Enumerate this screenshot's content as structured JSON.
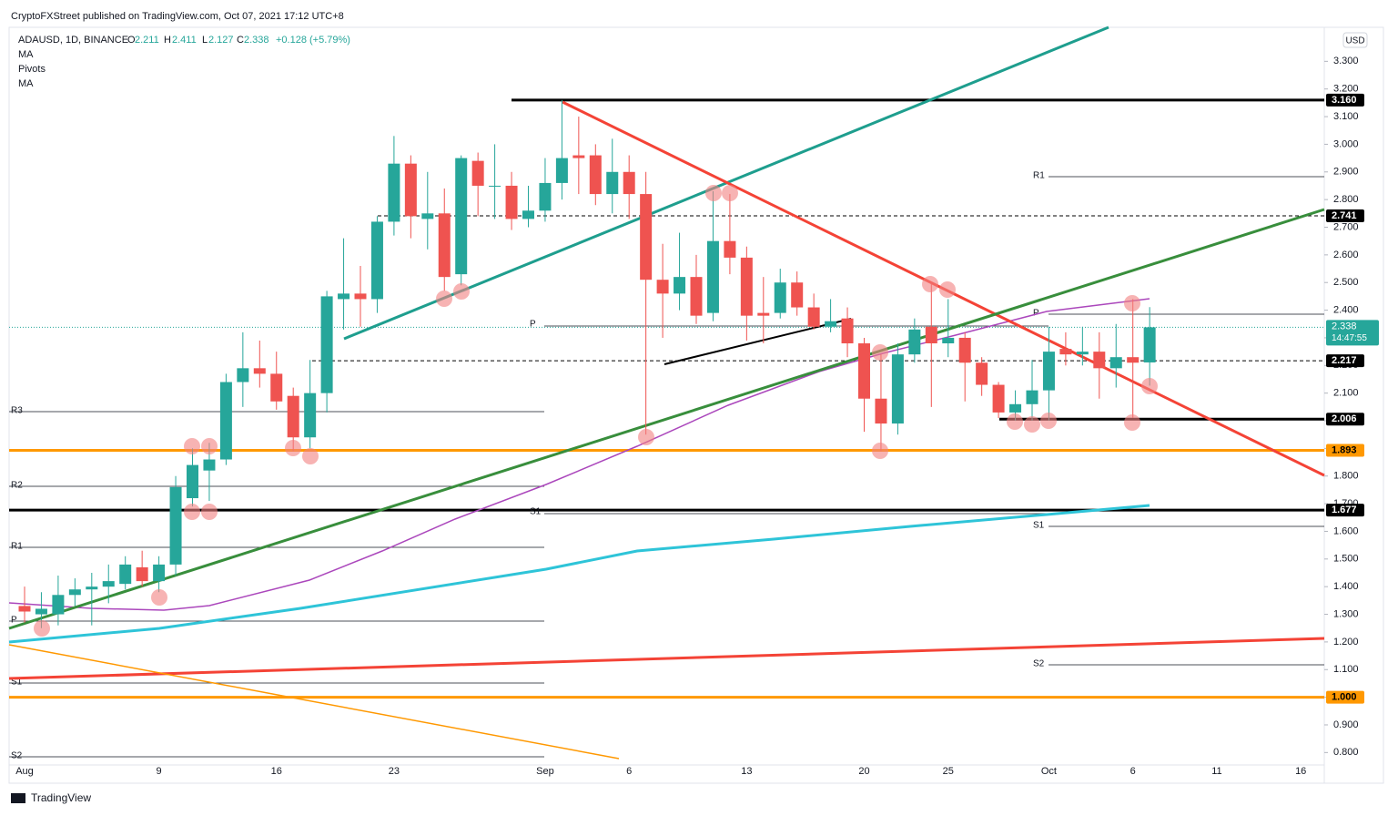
{
  "header": {
    "published": "CryptoFXStreet published on TradingView.com, Oct 07, 2021 17:12 UTC+8",
    "symbol": "ADAUSD, 1D, BINANCE",
    "o_label": "O",
    "o": "2.211",
    "h_label": "H",
    "h": "2.411",
    "l_label": "L",
    "l": "2.127",
    "c_label": "C",
    "c": "2.338",
    "change": "+0.128 (+5.79%)",
    "indicators": [
      "MA",
      "Pivots",
      "MA"
    ]
  },
  "footer": "TradingView",
  "chart_data": {
    "type": "candlestick",
    "currency": "USD",
    "categories": [
      "Aug",
      null,
      null,
      null,
      null,
      null,
      null,
      null,
      "9",
      null,
      null,
      null,
      null,
      null,
      null,
      "16",
      null,
      null,
      null,
      null,
      null,
      null,
      "23",
      null,
      null,
      null,
      null,
      null,
      null,
      null,
      null,
      "Sep",
      null,
      null,
      null,
      null,
      "6",
      null,
      null,
      null,
      null,
      null,
      null,
      "13",
      null,
      null,
      null,
      null,
      null,
      null,
      "20",
      null,
      null,
      null,
      null,
      "25",
      null,
      null,
      null,
      null,
      null,
      "Oct",
      null,
      null,
      null,
      null,
      "6",
      null
    ],
    "future_labels": [
      "11",
      "16"
    ],
    "up_color": "#26a69a",
    "down_color": "#ef5350",
    "open": [
      1.33,
      1.3,
      1.3,
      1.37,
      1.39,
      1.4,
      1.41,
      1.47,
      1.42,
      1.48,
      1.72,
      1.82,
      1.86,
      2.14,
      2.19,
      2.17,
      2.09,
      1.94,
      2.1,
      2.44,
      2.46,
      2.44,
      2.72,
      2.93,
      2.73,
      2.75,
      2.53,
      2.94,
      2.85,
      2.85,
      2.73,
      2.76,
      2.86,
      2.96,
      2.96,
      2.82,
      2.9,
      2.82,
      2.51,
      2.46,
      2.52,
      2.39,
      2.65,
      2.59,
      2.39,
      2.39,
      2.5,
      2.41,
      2.34,
      2.37,
      2.28,
      2.08,
      1.99,
      2.24,
      2.34,
      2.28,
      2.3,
      2.21,
      2.13,
      2.03,
      2.06,
      2.11,
      2.26,
      2.24,
      2.25,
      2.19,
      2.23,
      2.211
    ],
    "high": [
      1.4,
      1.38,
      1.44,
      1.43,
      1.45,
      1.48,
      1.51,
      1.53,
      1.51,
      1.8,
      1.9,
      1.92,
      2.17,
      2.32,
      2.29,
      2.25,
      2.12,
      2.22,
      2.47,
      2.66,
      2.56,
      2.74,
      3.03,
      2.96,
      2.9,
      2.84,
      2.96,
      2.97,
      3.0,
      2.9,
      2.85,
      2.95,
      3.16,
      3.1,
      3.0,
      3.02,
      2.96,
      2.9,
      2.64,
      2.68,
      2.6,
      2.83,
      2.82,
      2.63,
      2.52,
      2.55,
      2.54,
      2.46,
      2.44,
      2.41,
      2.3,
      2.24,
      2.28,
      2.37,
      2.5,
      2.44,
      2.32,
      2.23,
      2.14,
      2.11,
      2.22,
      2.34,
      2.32,
      2.34,
      2.32,
      2.35,
      2.44,
      2.411
    ],
    "low": [
      1.27,
      1.25,
      1.26,
      1.33,
      1.26,
      1.34,
      1.39,
      1.4,
      1.38,
      1.44,
      1.69,
      1.71,
      1.84,
      2.05,
      2.12,
      2.04,
      1.89,
      1.9,
      2.03,
      2.33,
      2.34,
      2.39,
      2.67,
      2.66,
      2.62,
      2.47,
      2.49,
      2.74,
      2.73,
      2.69,
      2.7,
      2.72,
      2.8,
      2.82,
      2.78,
      2.75,
      2.73,
      1.95,
      2.3,
      2.4,
      2.35,
      2.36,
      2.53,
      2.29,
      2.28,
      2.37,
      2.38,
      2.33,
      2.32,
      2.23,
      1.96,
      1.89,
      1.95,
      2.21,
      2.05,
      2.23,
      2.07,
      2.09,
      2.01,
      2.0,
      2.0,
      2.0,
      2.2,
      2.2,
      2.08,
      2.12,
      2.01,
      2.127
    ],
    "close": [
      1.31,
      1.32,
      1.37,
      1.39,
      1.4,
      1.42,
      1.48,
      1.42,
      1.48,
      1.76,
      1.84,
      1.86,
      2.14,
      2.19,
      2.17,
      2.07,
      1.94,
      2.1,
      2.45,
      2.46,
      2.44,
      2.72,
      2.93,
      2.74,
      2.75,
      2.52,
      2.95,
      2.85,
      2.85,
      2.73,
      2.76,
      2.86,
      2.95,
      2.95,
      2.82,
      2.9,
      2.82,
      2.51,
      2.46,
      2.52,
      2.38,
      2.65,
      2.59,
      2.38,
      2.38,
      2.5,
      2.41,
      2.34,
      2.36,
      2.28,
      2.08,
      1.99,
      2.24,
      2.33,
      2.28,
      2.3,
      2.21,
      2.13,
      2.03,
      2.06,
      2.11,
      2.25,
      2.24,
      2.25,
      2.19,
      2.23,
      2.21,
      2.338
    ],
    "ylim": [
      0.755,
      3.423
    ],
    "yticks": [
      {
        "value": 0.8,
        "label": "0.800"
      },
      {
        "value": 0.9,
        "label": "0.900"
      },
      {
        "value": 1.0,
        "label": "1.000"
      },
      {
        "value": 1.1,
        "label": "1.100"
      },
      {
        "value": 1.2,
        "label": "1.200"
      },
      {
        "value": 1.3,
        "label": "1.300"
      },
      {
        "value": 1.4,
        "label": "1.400"
      },
      {
        "value": 1.5,
        "label": "1.500"
      },
      {
        "value": 1.6,
        "label": "1.600"
      },
      {
        "value": 1.7,
        "label": "1.700"
      },
      {
        "value": 1.8,
        "label": "1.800"
      },
      {
        "value": 1.9,
        "label": "1.900"
      },
      {
        "value": 2.0,
        "label": "2.000"
      },
      {
        "value": 2.1,
        "label": "2.100"
      },
      {
        "value": 2.2,
        "label": "2.200"
      },
      {
        "value": 2.3,
        "label": "2.300"
      },
      {
        "value": 2.4,
        "label": "2.400"
      },
      {
        "value": 2.5,
        "label": "2.500"
      },
      {
        "value": 2.6,
        "label": "2.600"
      },
      {
        "value": 2.7,
        "label": "2.700"
      },
      {
        "value": 2.8,
        "label": "2.800"
      },
      {
        "value": 2.9,
        "label": "2.900"
      },
      {
        "value": 3.0,
        "label": "3.000"
      },
      {
        "value": 3.1,
        "label": "3.100"
      },
      {
        "value": 3.2,
        "label": "3.200"
      },
      {
        "value": 3.3,
        "label": "3.300"
      }
    ],
    "levels": [
      {
        "value": 3.16,
        "label": "3.160",
        "color": "#000000",
        "dashed": false
      },
      {
        "value": 2.741,
        "label": "2.741",
        "color": "#000000",
        "dashed": true
      },
      {
        "value": 2.217,
        "label": "2.217",
        "color": "#000000",
        "dashed": true
      },
      {
        "value": 2.006,
        "label": "2.006",
        "color": "#000000",
        "dashed": false
      },
      {
        "value": 1.893,
        "label": "1.893",
        "color": "#ff9800",
        "dashed": false
      },
      {
        "value": 1.677,
        "label": "1.677",
        "color": "#000000",
        "dashed": false
      },
      {
        "value": 1.0,
        "label": "1.000",
        "color": "#ff9800",
        "dashed": false
      }
    ],
    "last_price": {
      "value": 2.338,
      "label": "2.338",
      "countdown": "14:47:55",
      "color": "#26a69a"
    },
    "pivot_labels": [
      "R3",
      "R2",
      "R1",
      "P",
      "S1",
      "S2",
      "P",
      "S1",
      "R1",
      "P",
      "S1",
      "S2"
    ]
  }
}
